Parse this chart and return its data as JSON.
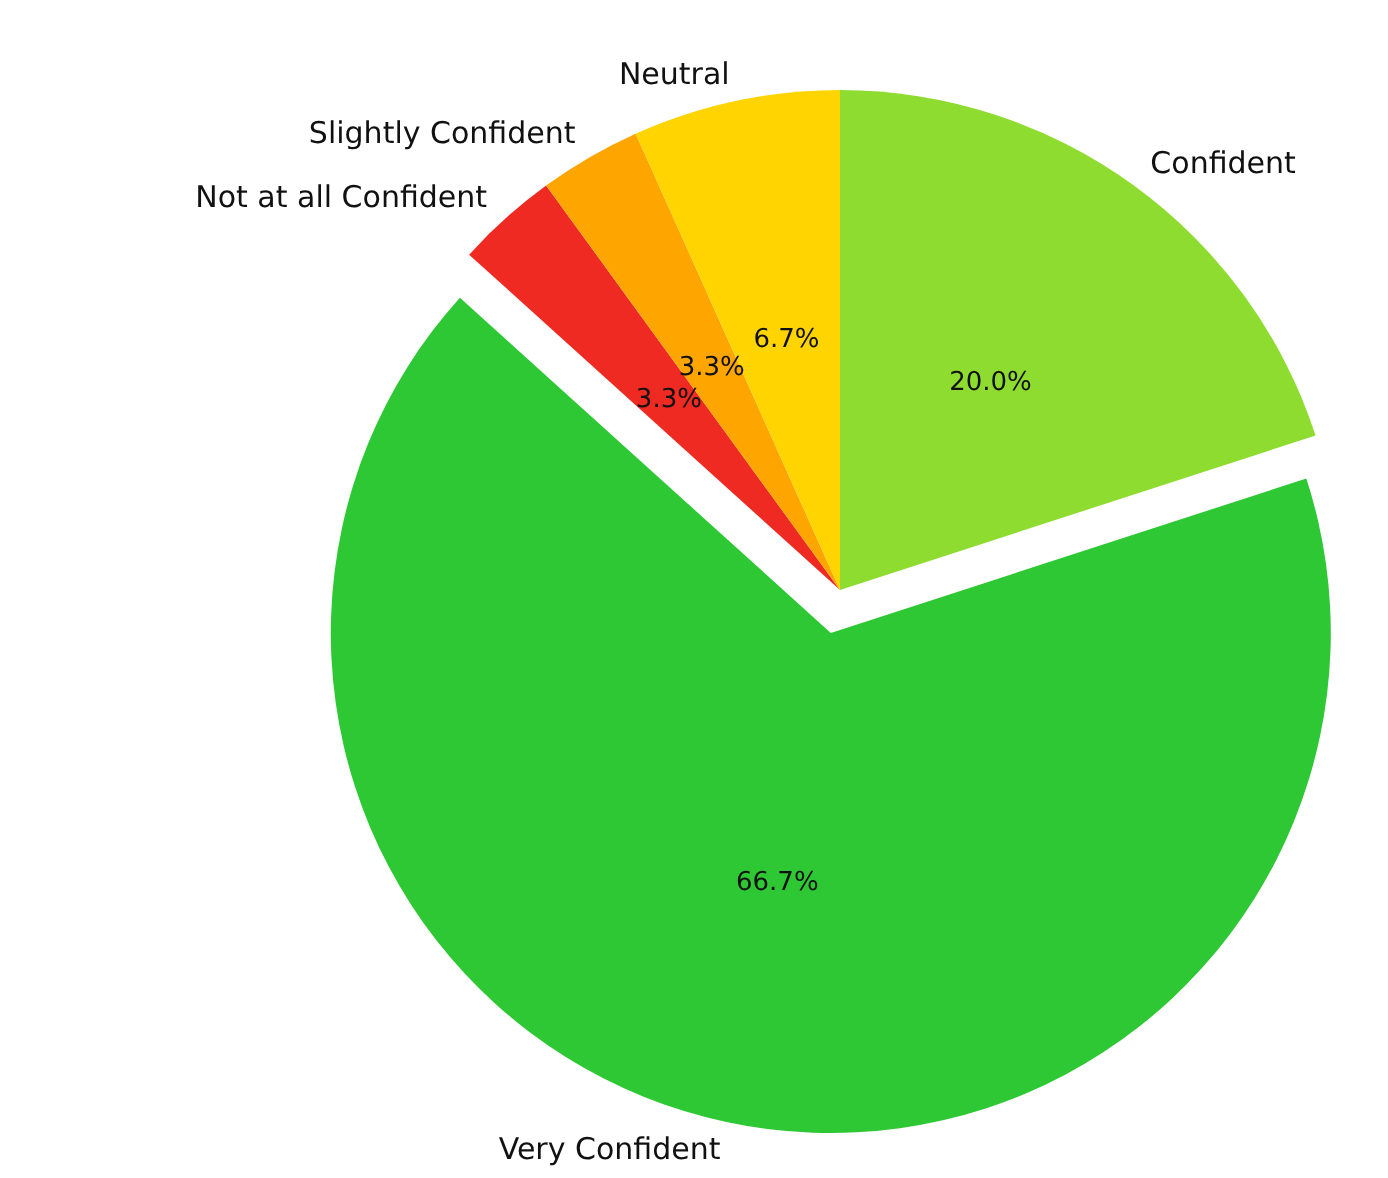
{
  "chart_data": {
    "type": "pie",
    "categories": [
      "Confident",
      "Very Confident",
      "Not at all Confident",
      "Slightly Confident",
      "Neutral"
    ],
    "values": [
      20.0,
      66.7,
      3.3,
      3.3,
      6.7
    ],
    "colors": [
      "#8edc2f",
      "#2ec834",
      "#ee2a22",
      "#ffa500",
      "#ffd400"
    ],
    "value_labels": [
      "20.0%",
      "66.7%",
      "3.3%",
      "3.3%",
      "6.7%"
    ],
    "legend": false
  }
}
